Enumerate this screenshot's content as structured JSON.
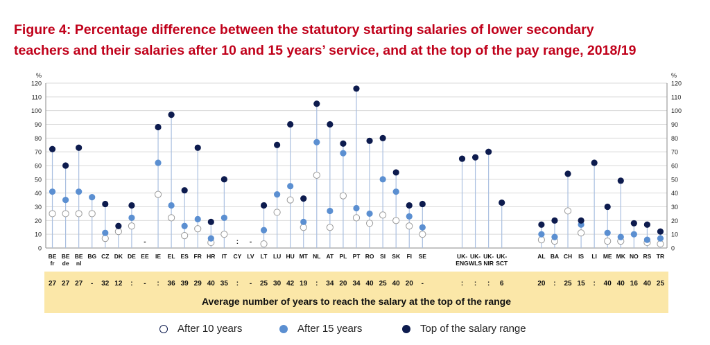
{
  "title_line1": "Figure 4: Percentage difference between the statutory starting salaries of lower secondary",
  "title_line2": "teachers and their salaries after 10 and 15 years’ service, and at the top of the pay range, 2018/19",
  "colors": {
    "title": "#c0001a",
    "after10_fill": "#ffffff",
    "after15": "#5b8fd1",
    "top": "#0d1b4e",
    "line": "#a9bfe0",
    "band": "#fbe7a8"
  },
  "legend": [
    {
      "label": "After 10 years",
      "style": "after10"
    },
    {
      "label": "After 15 years",
      "style": "after15"
    },
    {
      "label": "Top of the salary range",
      "style": "top"
    }
  ],
  "chart_data": {
    "type": "scatter",
    "ylabel_left": "%",
    "ylabel_right": "%",
    "ylim": [
      0,
      120
    ],
    "yticks": [
      0,
      10,
      20,
      30,
      40,
      50,
      60,
      70,
      80,
      90,
      100,
      110,
      120
    ],
    "grid": true,
    "series_names": [
      "After 10 years",
      "After 15 years",
      "Top of the salary range"
    ],
    "years_band_title": "Average number of years to reach the salary at the top of the range",
    "categories": [
      {
        "label": [
          "BE",
          "fr"
        ],
        "after10": 25,
        "after15": 41,
        "top": 72,
        "years": "27"
      },
      {
        "label": [
          "BE",
          "de"
        ],
        "after10": 25,
        "after15": 35,
        "top": 60,
        "years": "27"
      },
      {
        "label": [
          "BE",
          "nl"
        ],
        "after10": 25,
        "after15": 41,
        "top": 73,
        "years": "27"
      },
      {
        "label": [
          "BG"
        ],
        "after10": 25,
        "after15": 37,
        "top": null,
        "years": "-"
      },
      {
        "label": [
          "CZ"
        ],
        "after10": 7,
        "after15": 11,
        "top": 32,
        "years": "32"
      },
      {
        "label": [
          "DK"
        ],
        "after10": 12,
        "after15": null,
        "top": 16,
        "years": "12"
      },
      {
        "label": [
          "DE"
        ],
        "after10": 16,
        "after15": 22,
        "top": 31,
        "years": ":"
      },
      {
        "label": [
          "EE"
        ],
        "after10": null,
        "after15": null,
        "top": null,
        "years": "-",
        "marker": "-"
      },
      {
        "label": [
          "IE"
        ],
        "after10": 39,
        "after15": 62,
        "top": 88,
        "years": ":"
      },
      {
        "label": [
          "EL"
        ],
        "after10": 22,
        "after15": 31,
        "top": 97,
        "years": "36"
      },
      {
        "label": [
          "ES"
        ],
        "after10": 9,
        "after15": 16,
        "top": 42,
        "years": "39"
      },
      {
        "label": [
          "FR"
        ],
        "after10": 14,
        "after15": 21,
        "top": 73,
        "years": "29"
      },
      {
        "label": [
          "HR"
        ],
        "after10": 4,
        "after15": 7,
        "top": 19,
        "years": "40"
      },
      {
        "label": [
          "IT"
        ],
        "after10": 10,
        "after15": 22,
        "top": 50,
        "years": "35"
      },
      {
        "label": [
          "CY"
        ],
        "after10": null,
        "after15": null,
        "top": null,
        "years": ":",
        "marker": ":"
      },
      {
        "label": [
          "LV"
        ],
        "after10": null,
        "after15": null,
        "top": null,
        "years": "-",
        "marker": "-"
      },
      {
        "label": [
          "LT"
        ],
        "after10": 3,
        "after15": 13,
        "top": 31,
        "years": "25"
      },
      {
        "label": [
          "LU"
        ],
        "after10": 26,
        "after15": 39,
        "top": 75,
        "years": "30"
      },
      {
        "label": [
          "HU"
        ],
        "after10": 35,
        "after15": 45,
        "top": 90,
        "years": "42"
      },
      {
        "label": [
          "MT"
        ],
        "after10": 15,
        "after15": 19,
        "top": 36,
        "years": "19"
      },
      {
        "label": [
          "NL"
        ],
        "after10": 53,
        "after15": 77,
        "top": 105,
        "years": ":"
      },
      {
        "label": [
          "AT"
        ],
        "after10": 15,
        "after15": 27,
        "top": 90,
        "years": "34"
      },
      {
        "label": [
          "PL"
        ],
        "after10": 38,
        "after15": 69,
        "top": 76,
        "years": "20"
      },
      {
        "label": [
          "PT"
        ],
        "after10": 22,
        "after15": 29,
        "top": 116,
        "years": "34"
      },
      {
        "label": [
          "RO"
        ],
        "after10": 18,
        "after15": 25,
        "top": 78,
        "years": "40"
      },
      {
        "label": [
          "SI"
        ],
        "after10": 24,
        "after15": 50,
        "top": 80,
        "years": "25"
      },
      {
        "label": [
          "SK"
        ],
        "after10": 20,
        "after15": 41,
        "top": 55,
        "years": "40"
      },
      {
        "label": [
          "FI"
        ],
        "after10": 16,
        "after15": 23,
        "top": 31,
        "years": "20"
      },
      {
        "label": [
          "SE"
        ],
        "after10": 10,
        "after15": 15,
        "top": 32,
        "years": "-"
      },
      {
        "gap": true
      },
      {
        "label": [
          "UK-",
          "ENG"
        ],
        "after10": null,
        "after15": null,
        "top": 65,
        "years": ":"
      },
      {
        "label": [
          "UK-",
          "WLS"
        ],
        "after10": null,
        "after15": null,
        "top": 66,
        "years": ":"
      },
      {
        "label": [
          "UK-",
          "NIR"
        ],
        "after10": null,
        "after15": null,
        "top": 70,
        "years": ":"
      },
      {
        "label": [
          "UK-",
          "SCT"
        ],
        "after10": null,
        "after15": null,
        "top": 33,
        "years": "6"
      },
      {
        "gap": true
      },
      {
        "label": [
          "AL"
        ],
        "after10": 6,
        "after15": 10,
        "top": 17,
        "years": "20"
      },
      {
        "label": [
          "BA"
        ],
        "after10": 5,
        "after15": 8,
        "top": 20,
        "years": ":"
      },
      {
        "label": [
          "CH"
        ],
        "after10": 27,
        "after15": null,
        "top": 54,
        "years": "25"
      },
      {
        "label": [
          "IS"
        ],
        "after10": 11,
        "after15": 17,
        "top": 20,
        "years": "15"
      },
      {
        "label": [
          "LI"
        ],
        "after10": null,
        "after15": null,
        "top": 62,
        "years": ":"
      },
      {
        "label": [
          "ME"
        ],
        "after10": 5,
        "after15": 11,
        "top": 30,
        "years": "40"
      },
      {
        "label": [
          "MK"
        ],
        "after10": 5,
        "after15": 8,
        "top": 49,
        "years": "40"
      },
      {
        "label": [
          "NO"
        ],
        "after10": null,
        "after15": 10,
        "top": 18,
        "years": "16"
      },
      {
        "label": [
          "RS"
        ],
        "after10": 4,
        "after15": 6,
        "top": 17,
        "years": "40"
      },
      {
        "label": [
          "TR"
        ],
        "after10": 3,
        "after15": 7,
        "top": 12,
        "years": "25"
      }
    ]
  }
}
